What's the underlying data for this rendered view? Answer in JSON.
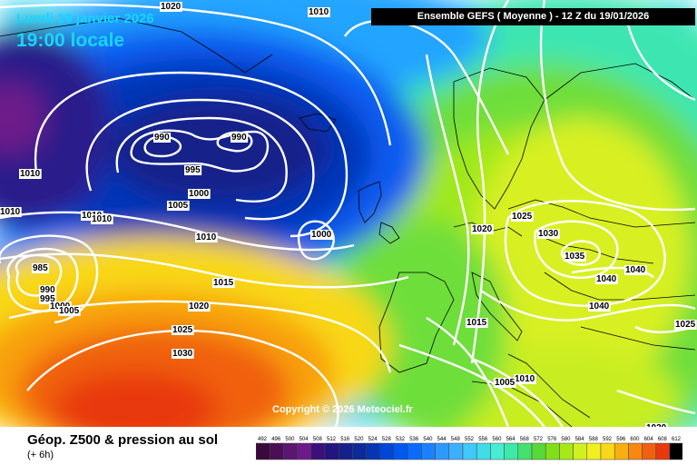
{
  "header": {
    "date_line": "Lundi 19 janvier 2026",
    "time_line": "19:00 locale",
    "run_info": "Ensemble GEFS  ( Moyenne )  -  12 Z du 19/01/2026"
  },
  "copyright": "Copyright © 2026 Meteociel.fr",
  "legend": {
    "title": "Géop. Z500 & pression au sol",
    "step": "(+ 6h)",
    "scale_ticks": [
      "492",
      "496",
      "500",
      "504",
      "508",
      "512",
      "516",
      "520",
      "524",
      "528",
      "532",
      "536",
      "540",
      "544",
      "548",
      "552",
      "556",
      "560",
      "564",
      "568",
      "572",
      "576",
      "580",
      "584",
      "588",
      "592",
      "596",
      "600",
      "604",
      "608",
      "612"
    ],
    "scale_colors": [
      "#3a0a3c",
      "#4a0f55",
      "#5c1570",
      "#6d1a8a",
      "#3c0f7a",
      "#221580",
      "#16208a",
      "#0c2a9a",
      "#0535b5",
      "#0046d8",
      "#0058f0",
      "#0a6cff",
      "#1b82ff",
      "#2e9aff",
      "#3cb0ff",
      "#40c8f8",
      "#40dce8",
      "#48ecd0",
      "#3ee8a8",
      "#44e070",
      "#58d838",
      "#80e018",
      "#a8e818",
      "#d0f020",
      "#f0f020",
      "#f8d818",
      "#f8b010",
      "#f88810",
      "#f06010",
      "#e83810",
      "#000000"
    ]
  },
  "isobars": [
    {
      "value": "1020",
      "label": "1020"
    },
    {
      "value": "1010",
      "label": "1010"
    },
    {
      "value": "990",
      "label": "990"
    },
    {
      "value": "995",
      "label": "995"
    },
    {
      "value": "1000",
      "label": "1000"
    },
    {
      "value": "1005",
      "label": "1005"
    },
    {
      "value": "1015",
      "label": "1015"
    },
    {
      "value": "1025",
      "label": "1025"
    },
    {
      "value": "1030",
      "label": "1030"
    },
    {
      "value": "1035",
      "label": "1035"
    },
    {
      "value": "1040",
      "label": "1040"
    },
    {
      "value": "985",
      "label": "985"
    }
  ]
}
